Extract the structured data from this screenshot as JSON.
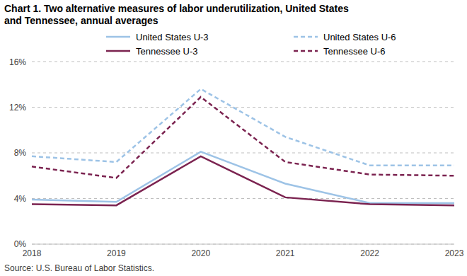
{
  "chart_data": {
    "type": "line",
    "title": "Chart 1. Two alternative measures of labor underutilization, United States and Tennessee, annual averages",
    "source": "Source: U.S. Bureau of Labor Statistics.",
    "categories": [
      "2018",
      "2019",
      "2020",
      "2021",
      "2022",
      "2023"
    ],
    "series": [
      {
        "name": "United States U-3",
        "color": "#9dc3e6",
        "line_style": "solid",
        "values": [
          3.9,
          3.7,
          8.1,
          5.3,
          3.6,
          3.6
        ]
      },
      {
        "name": "United States U-6",
        "color": "#9dc3e6",
        "line_style": "dashed",
        "values": [
          7.7,
          7.2,
          13.6,
          9.4,
          6.9,
          6.9
        ]
      },
      {
        "name": "Tennessee U-3",
        "color": "#7b2350",
        "line_style": "solid",
        "values": [
          3.5,
          3.4,
          7.7,
          4.1,
          3.5,
          3.4
        ]
      },
      {
        "name": "Tennessee U-6",
        "color": "#7b2350",
        "line_style": "dashed",
        "values": [
          6.8,
          5.8,
          12.9,
          7.2,
          6.1,
          6.0
        ]
      }
    ],
    "ylim": [
      0,
      16
    ],
    "yticks": [
      {
        "value": 0,
        "label": "0%"
      },
      {
        "value": 4,
        "label": "4%"
      },
      {
        "value": 8,
        "label": "8%"
      },
      {
        "value": 12,
        "label": "12%"
      },
      {
        "value": 16,
        "label": "16%"
      }
    ],
    "grid": true
  }
}
